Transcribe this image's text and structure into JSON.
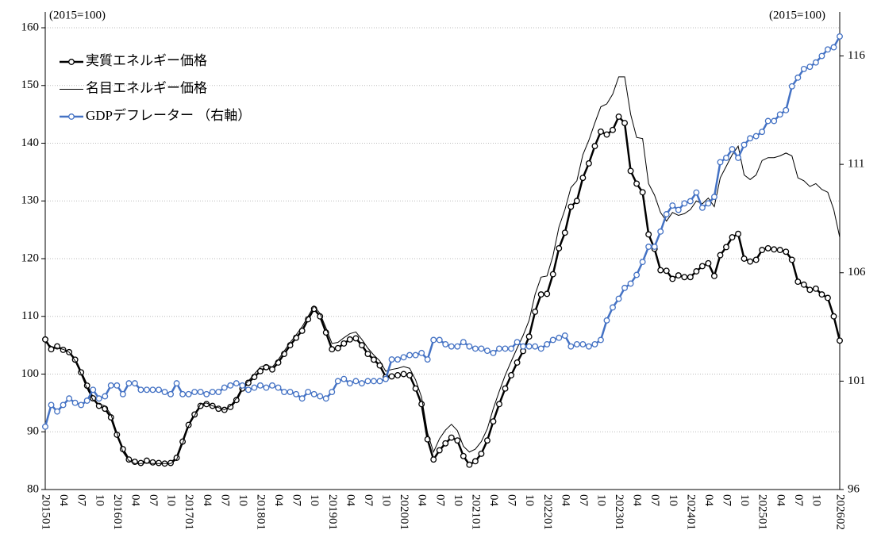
{
  "chart_data": {
    "type": "line",
    "y_axis_label": "(2015=100)",
    "y2_axis_label": "(2015=100)",
    "categories": [
      "201501",
      null,
      null,
      "04",
      null,
      null,
      "07",
      null,
      null,
      "10",
      null,
      null,
      "201601",
      null,
      null,
      "04",
      null,
      null,
      "07",
      null,
      null,
      "10",
      null,
      null,
      "201701",
      null,
      null,
      "04",
      null,
      null,
      "07",
      null,
      null,
      "10",
      null,
      null,
      "201801",
      null,
      null,
      "04",
      null,
      null,
      "07",
      null,
      null,
      "10",
      null,
      null,
      "201901",
      null,
      null,
      "04",
      null,
      null,
      "07",
      null,
      null,
      "10",
      null,
      null,
      "202001",
      null,
      null,
      "04",
      null,
      null,
      "07",
      null,
      null,
      "10",
      null,
      null,
      "202101",
      null,
      null,
      "04",
      null,
      null,
      "07",
      null,
      null,
      "10",
      null,
      null,
      "202201",
      null,
      null,
      "04",
      null,
      null,
      "07",
      null,
      null,
      "10",
      null,
      null,
      "202301",
      null,
      null,
      "04",
      null,
      null,
      "07",
      null,
      null,
      "10",
      null,
      null,
      "202401",
      null,
      null,
      "04",
      null,
      null,
      "07",
      null,
      null,
      "10",
      null,
      null,
      "202501",
      null,
      null,
      "04",
      null,
      null,
      "07",
      null,
      null,
      "10",
      null,
      null,
      null,
      "202602"
    ],
    "ylim": [
      80,
      160
    ],
    "yticks": [
      80,
      90,
      100,
      110,
      120,
      130,
      140,
      150,
      160
    ],
    "y2lim": [
      96,
      117.3
    ],
    "y2ticks": [
      96,
      101,
      106,
      111,
      116
    ],
    "grid": true,
    "legend": "upper left",
    "series": [
      {
        "name": "実質エネルギー価格",
        "color": "#000000",
        "width": 2.5,
        "marker": true,
        "values": [
          106,
          104.3,
          104.8,
          104.2,
          103.8,
          102.5,
          100.3,
          98,
          95.8,
          94.5,
          94,
          92.5,
          89.5,
          87,
          85.2,
          84.8,
          84.6,
          85,
          84.7,
          84.6,
          84.5,
          84.6,
          85.5,
          88.3,
          91.2,
          93,
          94.5,
          94.8,
          94.5,
          94,
          93.8,
          94.3,
          95.5,
          97.5,
          98.5,
          99.5,
          100.5,
          101.2,
          100.8,
          102,
          103.5,
          105,
          106.3,
          107.5,
          109.5,
          111.3,
          110,
          107.2,
          104.3,
          104.5,
          105.3,
          106,
          106.2,
          105,
          103.5,
          102.5,
          101.5,
          99.5,
          99.6,
          99.8,
          100,
          99.8,
          97.5,
          94.8,
          88.7,
          85.2,
          86.8,
          88,
          89,
          88.5,
          85.8,
          84.3,
          84.9,
          86.2,
          88.5,
          91.8,
          94.8,
          97.5,
          99.8,
          102,
          104,
          106.5,
          110.8,
          113.8,
          113.9,
          117.3,
          121.8,
          124.5,
          129,
          130,
          134,
          136.5,
          139.5,
          142,
          141.5,
          142.3,
          144.6,
          143.5,
          135.2,
          133,
          131.5,
          124.2,
          121.7,
          118,
          117.9,
          116.5,
          117.1,
          116.8,
          116.8,
          117.8,
          118.7,
          119.2,
          117,
          120.6,
          122,
          123.7,
          124.3,
          120,
          119.5,
          119.8,
          121.5,
          121.8,
          121.6,
          121.5,
          121.2,
          119.8,
          116,
          115.5,
          114.6,
          114.8,
          113.8,
          113.2,
          110,
          105.8
        ]
      },
      {
        "name": "名目エネルギー価格",
        "color": "#000000",
        "width": 1,
        "marker": false,
        "values": [
          105.5,
          104.8,
          104.5,
          104.3,
          103.8,
          102.3,
          100,
          97.5,
          95.5,
          94.8,
          94.5,
          93,
          89.8,
          86.5,
          85,
          84.5,
          84.5,
          84.6,
          84.5,
          84.5,
          84.5,
          84.5,
          85.2,
          88,
          91,
          92.8,
          94.8,
          95,
          94.5,
          94.2,
          93.8,
          94.5,
          95.8,
          97.8,
          98.8,
          100,
          101.2,
          101.6,
          101.2,
          102.5,
          104,
          105.5,
          106.8,
          108.2,
          110,
          111.8,
          110.5,
          108,
          105.3,
          105.5,
          106.3,
          107,
          107.3,
          106,
          104.5,
          103.3,
          102.3,
          100.5,
          100.8,
          101,
          101.3,
          101,
          99,
          96,
          89.8,
          86.5,
          88.8,
          90.3,
          91.3,
          90.2,
          87.5,
          86.5,
          87,
          88.3,
          90.5,
          94,
          97,
          99.8,
          102.2,
          104.5,
          106.7,
          109.3,
          113.8,
          116.8,
          117,
          120.5,
          125.5,
          128.5,
          132.3,
          133.5,
          138,
          140.5,
          143.5,
          146.3,
          146.8,
          148.5,
          151.5,
          151.5,
          145,
          141,
          140.8,
          133,
          131,
          128,
          126.5,
          128,
          127.5,
          127.8,
          128.5,
          130,
          129.5,
          130.5,
          129,
          134,
          136,
          138,
          139.5,
          134.5,
          133.7,
          134.5,
          137,
          137.5,
          137.5,
          137.8,
          138.3,
          137.8,
          134,
          133.5,
          132.5,
          133,
          132,
          131.5,
          128.5,
          123.7
        ]
      },
      {
        "name": "GDPデフレーター （右軸）",
        "color": "#4472c4",
        "width": 2.5,
        "marker": true,
        "axis": "y2",
        "values": [
          98.9,
          99.9,
          99.6,
          99.9,
          100.2,
          100,
          99.9,
          100.1,
          100.6,
          100.2,
          100.3,
          100.8,
          100.8,
          100.4,
          100.9,
          100.9,
          100.6,
          100.6,
          100.6,
          100.6,
          100.5,
          100.4,
          100.9,
          100.4,
          100.4,
          100.5,
          100.5,
          100.4,
          100.5,
          100.5,
          100.7,
          100.8,
          100.9,
          100.8,
          100.6,
          100.7,
          100.8,
          100.7,
          100.8,
          100.7,
          100.5,
          100.5,
          100.4,
          100.2,
          100.5,
          100.4,
          100.3,
          100.2,
          100.5,
          101,
          101.1,
          100.9,
          101,
          100.9,
          101,
          101,
          101,
          101.1,
          102,
          102,
          102.1,
          102.2,
          102.2,
          102.3,
          102,
          102.9,
          102.9,
          102.7,
          102.6,
          102.6,
          102.8,
          102.6,
          102.5,
          102.5,
          102.4,
          102.3,
          102.5,
          102.5,
          102.5,
          102.8,
          102.6,
          102.6,
          102.6,
          102.5,
          102.7,
          102.9,
          103,
          103.1,
          102.6,
          102.7,
          102.7,
          102.6,
          102.7,
          102.9,
          103.8,
          104.4,
          104.8,
          105.3,
          105.5,
          105.9,
          106.5,
          107.2,
          107.2,
          107.9,
          108.7,
          109.1,
          108.9,
          109.2,
          109.3,
          109.7,
          109,
          109.2,
          109.5,
          111.1,
          111.3,
          111.7,
          111.3,
          111.9,
          112.2,
          112.3,
          112.5,
          113,
          113,
          113.3,
          113.5,
          114.6,
          115,
          115.4,
          115.5,
          115.7,
          116,
          116.3,
          116.4,
          116.9
        ]
      }
    ]
  }
}
